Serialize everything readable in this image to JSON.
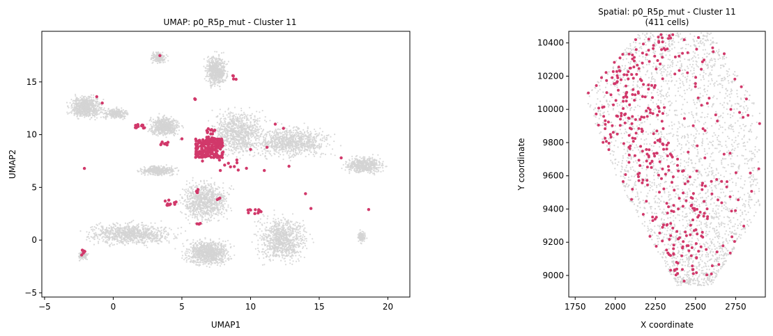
{
  "colors": {
    "background_cells": "#d3d3d3",
    "highlight_cells": "#d1386a"
  },
  "chart_data": [
    {
      "type": "scatter",
      "title": "UMAP: p0_R5p_mut - Cluster 11",
      "xlabel": "UMAP1",
      "ylabel": "UMAP2",
      "xlim": [
        -5.2,
        21.6
      ],
      "ylim": [
        -5.4,
        19.8
      ],
      "xticks": [
        -5,
        0,
        5,
        10,
        15,
        20
      ],
      "yticks": [
        -5,
        0,
        5,
        10,
        15
      ],
      "grid": false,
      "background_regions": [
        {
          "x": [
            -4,
            0
          ],
          "y": [
            10.8,
            14.4
          ]
        },
        {
          "x": [
            -1.4,
            1.8
          ],
          "y": [
            11.2,
            12.8
          ]
        },
        {
          "x": [
            1.8,
            5.6
          ],
          "y": [
            9.2,
            12.4
          ]
        },
        {
          "x": [
            2.4,
            4.2
          ],
          "y": [
            16.4,
            18.2
          ]
        },
        {
          "x": [
            6.2,
            8.8
          ],
          "y": [
            13.6,
            18.6
          ]
        },
        {
          "x": [
            5.8,
            12.4
          ],
          "y": [
            6.6,
            13.8
          ]
        },
        {
          "x": [
            8.4,
            17.8
          ],
          "y": [
            6.8,
            11.8
          ]
        },
        {
          "x": [
            16,
            20.6
          ],
          "y": [
            5.8,
            8.4
          ]
        },
        {
          "x": [
            3.8,
            9.6
          ],
          "y": [
            0.6,
            6.8
          ]
        },
        {
          "x": [
            9.2,
            15.4
          ],
          "y": [
            -3.6,
            3.8
          ]
        },
        {
          "x": [
            -4,
            6.6
          ],
          "y": [
            -1.2,
            2.4
          ]
        },
        {
          "x": [
            4.2,
            9.6
          ],
          "y": [
            -3.2,
            0.8
          ]
        },
        {
          "x": [
            1,
            5.6
          ],
          "y": [
            5.8,
            7.4
          ]
        },
        {
          "x": [
            -2.8,
            -1.6
          ],
          "y": [
            -2.2,
            -0.8
          ]
        },
        {
          "x": [
            17.6,
            18.6
          ],
          "y": [
            -0.6,
            1.2
          ]
        }
      ],
      "highlight_clusters": [
        {
          "x": [
            6.0,
            8.0
          ],
          "y": [
            7.8,
            9.6
          ],
          "n": 200
        },
        {
          "x": [
            6.8,
            7.4
          ],
          "y": [
            9.6,
            10.6
          ],
          "n": 16
        },
        {
          "x": [
            1.6,
            2.6
          ],
          "y": [
            10.6,
            11.0
          ],
          "n": 12
        },
        {
          "x": [
            3.4,
            4.2
          ],
          "y": [
            9.0,
            9.3
          ],
          "n": 8
        },
        {
          "x": [
            3.6,
            4.6
          ],
          "y": [
            3.3,
            3.8
          ],
          "n": 10
        },
        {
          "x": [
            9.8,
            10.8
          ],
          "y": [
            2.5,
            2.9
          ],
          "n": 12
        },
        {
          "x": [
            -2.4,
            -2.0
          ],
          "y": [
            -1.5,
            -0.9
          ],
          "n": 7
        },
        {
          "x": [
            6.0,
            6.4
          ],
          "y": [
            1.5,
            1.6
          ],
          "n": 4
        },
        {
          "x": [
            6.0,
            6.2
          ],
          "y": [
            4.4,
            4.9
          ],
          "n": 4
        },
        {
          "x": [
            7.4,
            7.8
          ],
          "y": [
            3.8,
            4.0
          ],
          "n": 3
        },
        {
          "x": [
            7.6,
            10.0
          ],
          "y": [
            6.6,
            7.6
          ],
          "n": 8
        },
        {
          "x": [
            5.9,
            6.1
          ],
          "y": [
            13.2,
            13.6
          ],
          "n": 3
        },
        {
          "x": [
            8.2,
            9.0
          ],
          "y": [
            15.2,
            15.6
          ],
          "n": 4
        }
      ],
      "highlight_points": [
        [
          -2.1,
          6.8
        ],
        [
          -1.2,
          13.6
        ],
        [
          -0.8,
          13.0
        ],
        [
          3.4,
          17.5
        ],
        [
          5.0,
          9.6
        ],
        [
          11.8,
          11.0
        ],
        [
          12.4,
          10.6
        ],
        [
          10.0,
          8.6
        ],
        [
          11.0,
          6.6
        ],
        [
          14.0,
          4.4
        ],
        [
          14.4,
          3.0
        ],
        [
          16.6,
          7.8
        ],
        [
          18.6,
          2.9
        ],
        [
          12.8,
          7.0
        ],
        [
          9.0,
          7.6
        ],
        [
          11.2,
          8.8
        ],
        [
          6.5,
          7.5
        ],
        [
          7.8,
          6.6
        ]
      ]
    },
    {
      "type": "scatter",
      "title": "Spatial: p0_R5p_mut - Cluster 11",
      "subtitle": "(411 cells)",
      "xlabel": "X coordinate",
      "ylabel": "Y coordinate",
      "xlim": [
        1710,
        2935
      ],
      "ylim": [
        8870,
        10470
      ],
      "xticks": [
        1750,
        2000,
        2250,
        2500,
        2750
      ],
      "yticks": [
        9000,
        9200,
        9400,
        9600,
        9800,
        10000,
        10200,
        10400
      ],
      "grid": false,
      "highlight_count": 411
    }
  ]
}
